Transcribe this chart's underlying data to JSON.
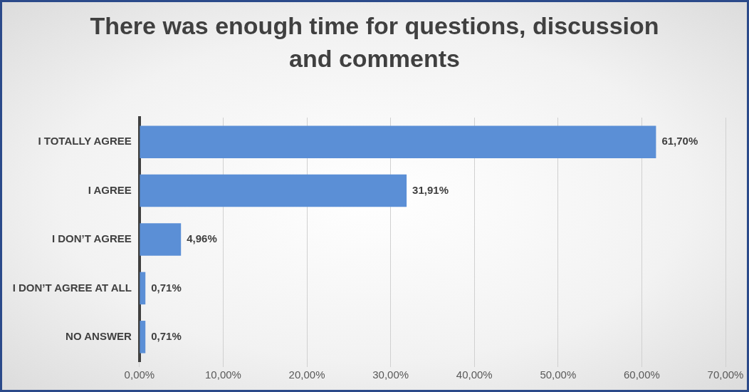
{
  "chart_data": {
    "type": "bar",
    "orientation": "horizontal",
    "title": "There was enough time for questions, discussion and comments",
    "categories": [
      "I TOTALLY AGREE",
      "I AGREE",
      "I DON’T AGREE",
      "I DON’T AGREE AT ALL",
      "NO ANSWER"
    ],
    "values": [
      61.7,
      31.91,
      4.96,
      0.71,
      0.71
    ],
    "value_labels": [
      "61,70%",
      "31,91%",
      "4,96%",
      "0,71%",
      "0,71%"
    ],
    "color": "#5b8fd6",
    "xlim": [
      0,
      70
    ],
    "xticks": [
      {
        "value": 0,
        "label": "0,00%"
      },
      {
        "value": 10,
        "label": "10,00%"
      },
      {
        "value": 20,
        "label": "20,00%"
      },
      {
        "value": 30,
        "label": "30,00%"
      },
      {
        "value": 40,
        "label": "40,00%"
      },
      {
        "value": 50,
        "label": "50,00%"
      },
      {
        "value": 60,
        "label": "60,00%"
      },
      {
        "value": 70,
        "label": "70,00%"
      }
    ],
    "grid": "x",
    "legend": false
  }
}
